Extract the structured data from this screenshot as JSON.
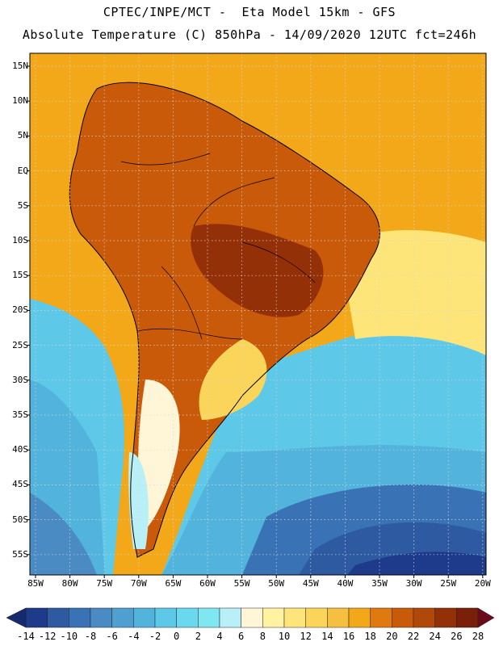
{
  "header": {
    "line1": "CPTEC/INPE/MCT -  Eta Model 15km - GFS",
    "line2": "Absolute Temperature (C) 850hPa - 14/09/2020 12UTC fct=246h"
  },
  "axes": {
    "lat_labels": [
      "15N",
      "10N",
      "5N",
      "EQ",
      "5S",
      "10S",
      "15S",
      "20S",
      "25S",
      "30S",
      "35S",
      "40S",
      "45S",
      "50S",
      "55S"
    ],
    "lon_labels": [
      "85W",
      "80W",
      "75W",
      "70W",
      "65W",
      "60W",
      "55W",
      "50W",
      "45W",
      "40W",
      "35W",
      "30W",
      "25W",
      "20W"
    ]
  },
  "colorbar": {
    "labels": [
      "-14",
      "-12",
      "-10",
      "-8",
      "-6",
      "-4",
      "-2",
      "0",
      "2",
      "4",
      "6",
      "8",
      "10",
      "12",
      "14",
      "16",
      "18",
      "20",
      "22",
      "24",
      "26",
      "28"
    ],
    "colors": [
      "#1e3a8a",
      "#2d5aa0",
      "#3a73b5",
      "#4a8bc4",
      "#4f9fd0",
      "#52b4dc",
      "#5ec8e8",
      "#6ad8ee",
      "#7fe6f2",
      "#b9f0f8",
      "#fff5d7",
      "#fff2a0",
      "#fde57a",
      "#fbd55a",
      "#f5c040",
      "#f2a818",
      "#e07a10",
      "#c85a0a",
      "#b0480a",
      "#943008",
      "#7a2008"
    ],
    "low_arrow_color": "#162a70",
    "high_arrow_color": "#6a0a1a"
  },
  "map": {
    "regions": [
      "ocean-north-warm",
      "land-warm",
      "ocean-south-cold",
      "polar-cold"
    ]
  }
}
